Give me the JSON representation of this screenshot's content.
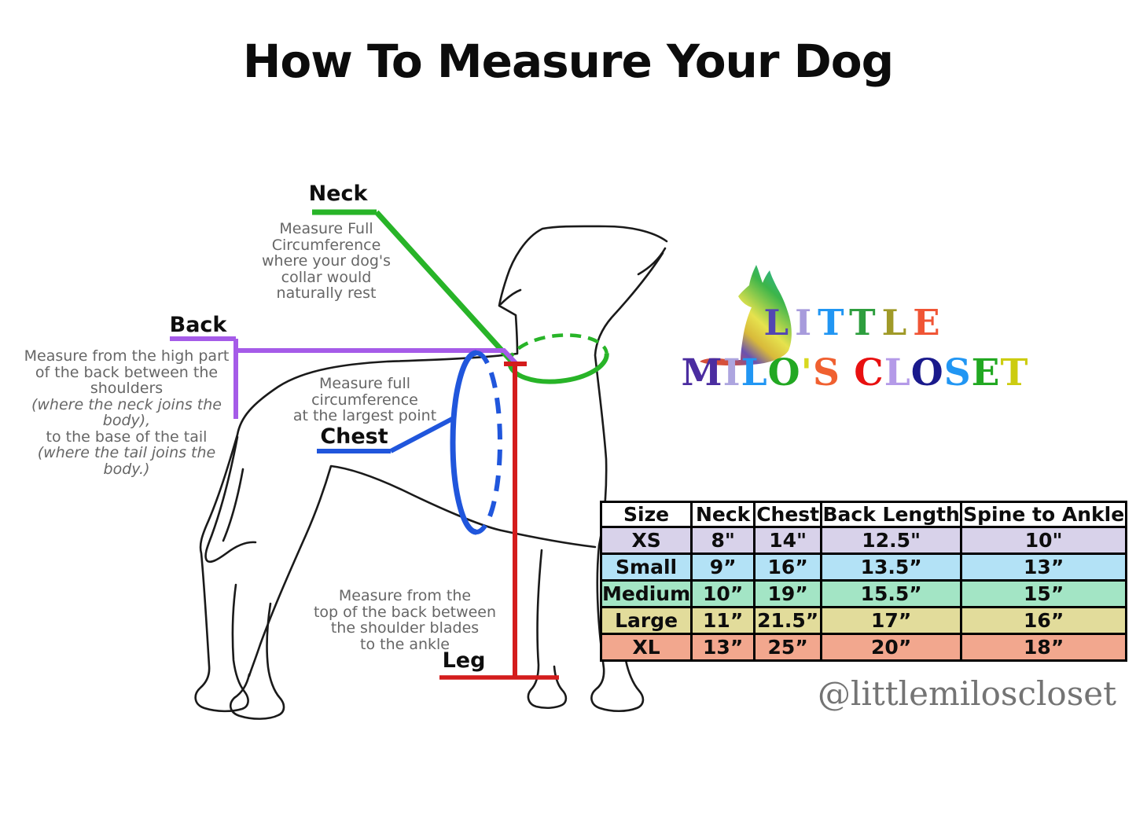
{
  "title": "How To Measure Your Dog",
  "colors": {
    "neck_green": "#28B428",
    "back_purple": "#A55BE8",
    "chest_blue": "#2056DC",
    "leg_red": "#D41C1C",
    "desc_gray": "#666666",
    "handle_gray": "#747474"
  },
  "annotations": {
    "neck": {
      "label": "Neck",
      "desc_lines": [
        {
          "t": "Measure Full",
          "i": false
        },
        {
          "t": "Circumference",
          "i": false
        },
        {
          "t": "where your dog's",
          "i": false
        },
        {
          "t": "collar would",
          "i": false
        },
        {
          "t": "naturally rest",
          "i": false
        }
      ]
    },
    "back": {
      "label": "Back",
      "desc_lines": [
        {
          "t": "Measure from the high part",
          "i": false
        },
        {
          "t": "of the back between the",
          "i": false
        },
        {
          "t": "shoulders",
          "i": false
        },
        {
          "t": "(where the neck joins the body),",
          "i": true
        },
        {
          "t": "to the base of the tail",
          "i": false
        },
        {
          "t": "(where the tail joins the body.)",
          "i": true
        }
      ]
    },
    "chest": {
      "label": "Chest",
      "desc_lines": [
        {
          "t": "Measure full",
          "i": false
        },
        {
          "t": "circumference",
          "i": false
        },
        {
          "t": "at the largest point",
          "i": false
        }
      ]
    },
    "leg": {
      "label": "Leg",
      "desc_lines": [
        {
          "t": "Measure from the",
          "i": false
        },
        {
          "t": "top of the back between",
          "i": false
        },
        {
          "t": "the shoulder blades",
          "i": false
        },
        {
          "t": "to the ankle",
          "i": false
        }
      ]
    }
  },
  "logo": {
    "line1": {
      "text": "LITTLE",
      "colors": [
        "#5246B2",
        "#A79BDC",
        "#2196F3",
        "#2E9E3E",
        "#A09A28",
        "#F05535"
      ]
    },
    "line2": {
      "text": "MILO'S CLOSET",
      "colors": [
        "#4B2DA0",
        "#ADA5DF",
        "#2196F3",
        "#22A822",
        "#D8D820",
        "#F06030",
        "",
        "#E81010",
        "#B49AE8",
        "#1A1A8C",
        "#2196F3",
        "#22A822",
        "#CCCC10"
      ]
    }
  },
  "size_table": {
    "headers": [
      "Size",
      "Neck",
      "Chest",
      "Back Length",
      "Spine to Ankle"
    ],
    "rows": [
      {
        "label": "XS",
        "color": "#D8D2EA",
        "values": [
          "8\"",
          "14\"",
          "12.5\"",
          "10\""
        ]
      },
      {
        "label": "Small",
        "color": "#B3E2F6",
        "values": [
          "9”",
          "16”",
          "13.5”",
          "13”"
        ]
      },
      {
        "label": "Medium",
        "color": "#A3E5C5",
        "values": [
          "10”",
          "19”",
          "15.5”",
          "15”"
        ]
      },
      {
        "label": "Large",
        "color": "#E2DC9B",
        "values": [
          "11”",
          "21.5”",
          "17”",
          "16”"
        ]
      },
      {
        "label": "XL",
        "color": "#F2A78E",
        "values": [
          "13”",
          "25”",
          "20”",
          "18”"
        ]
      }
    ]
  },
  "handle": "@littlemiloscloset"
}
